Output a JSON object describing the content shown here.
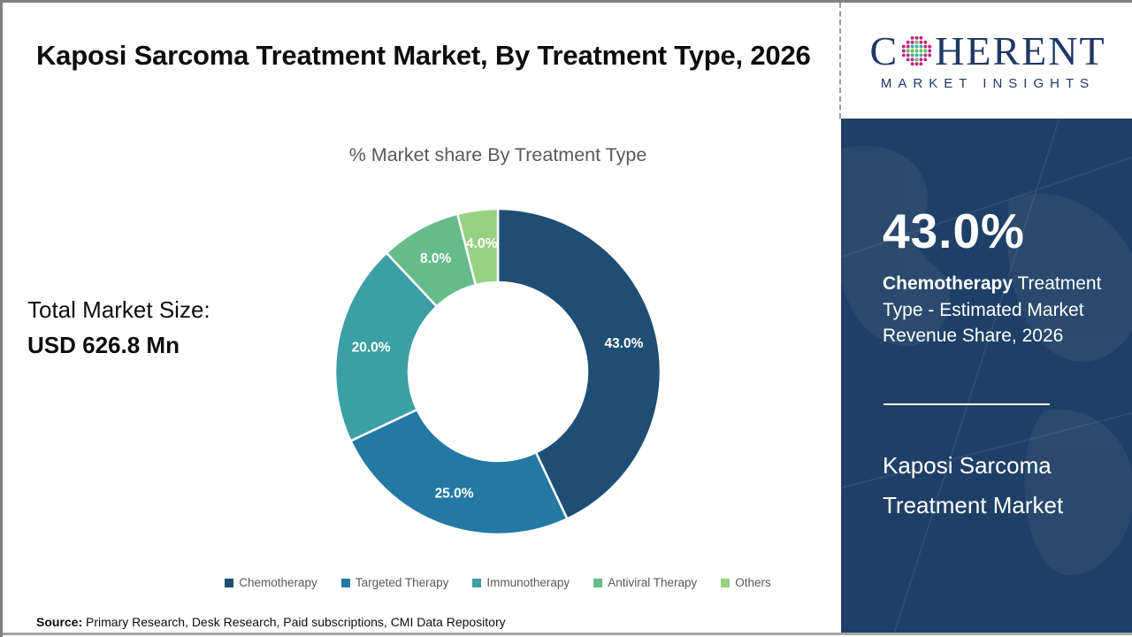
{
  "header": {
    "title": "Kaposi Sarcoma Treatment Market, By Treatment Type, 2026"
  },
  "logo": {
    "word_start": "C",
    "word_end": "HERENT",
    "subtitle": "MARKET INSIGHTS",
    "brand_color": "#1f3864",
    "globe_dot_colors": {
      "outer": "#c2257c",
      "row_even": "#62be50",
      "row_odd": "#35ada4"
    }
  },
  "left_panel": {
    "total_label": "Total Market Size:",
    "total_value": "USD 626.8 Mn"
  },
  "chart_data": {
    "type": "pie",
    "subtype": "donut",
    "title": "% Market share By Treatment Type",
    "categories": [
      "Chemotherapy",
      "Targeted Therapy",
      "Immunotherapy",
      "Antiviral Therapy",
      "Others"
    ],
    "values": [
      43.0,
      25.0,
      20.0,
      8.0,
      4.0
    ],
    "labels": [
      "43.0%",
      "25.0%",
      "20.0%",
      "8.0%",
      "4.0%"
    ],
    "colors": [
      "#1f4e74",
      "#2379a3",
      "#3ba0a5",
      "#66bb8b",
      "#97d283"
    ],
    "start_angle_deg": 0,
    "direction": "clockwise",
    "legend_position": "bottom",
    "data_label_color": "#ffffff"
  },
  "sidebar": {
    "bg_color": "#1f4066",
    "stat_value": "43.0%",
    "stat_desc_bold": "Chemotherapy",
    "stat_desc_rest": " Treatment Type - Estimated Market Revenue Share, 2026",
    "market_name_line1": "Kaposi Sarcoma",
    "market_name_line2": "Treatment Market"
  },
  "footer": {
    "source_label": "Source:",
    "source_text": " Primary Research, Desk Research, Paid subscriptions, CMI Data Repository"
  }
}
